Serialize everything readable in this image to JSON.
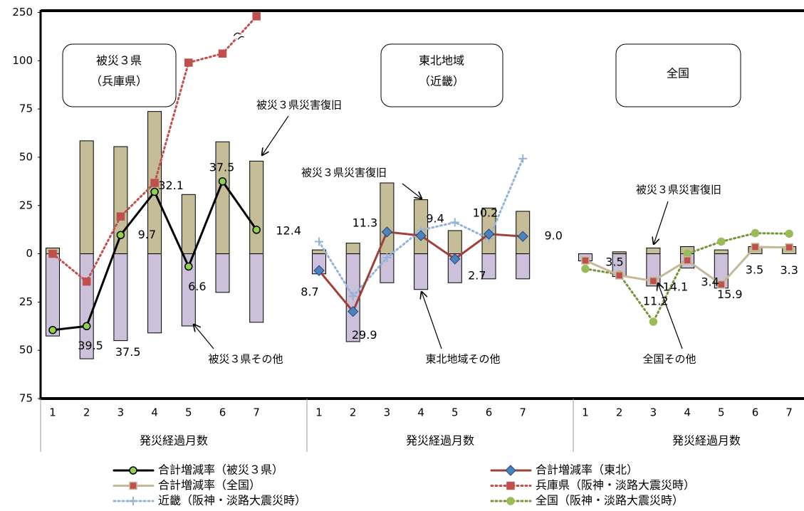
{
  "chart_data": {
    "type": "combo",
    "ylim": [
      -75,
      250
    ],
    "axis_break": [
      112.5,
      237.5
    ],
    "yticks": [
      250,
      100,
      75,
      50,
      25,
      0,
      {
        "value": -25,
        "label": "25"
      },
      {
        "value": -50,
        "label": "50"
      },
      {
        "value": -75,
        "label": "75"
      }
    ],
    "bar_colors": {
      "positive": "#c4bd97",
      "negative": "#ccc0da"
    },
    "panels": [
      {
        "title": [
          "被災３県",
          "（兵庫県）"
        ],
        "categories": [
          1,
          2,
          3,
          4,
          5,
          6,
          7
        ],
        "x_label": "発災経過月数",
        "bars": {
          "positive": [
            3,
            58.5,
            55.5,
            73.7,
            30.7,
            58,
            48
          ],
          "negative": [
            -42.6,
            -54.4,
            -45,
            -41,
            -37.4,
            -20,
            -35.5
          ]
        },
        "annotations": [
          {
            "text": "被災３県災害復旧"
          },
          {
            "text": "被災３県その他"
          }
        ],
        "series": [
          {
            "name": "合計増減率（被災３県）",
            "color": "#000000",
            "marker": "circle",
            "marker_color": "#92d050",
            "dash": false,
            "values": [
              -39.5,
              -37.5,
              9.7,
              32.1,
              -6.6,
              37.5,
              12.4
            ],
            "value_labels": [
              "39.5",
              "37.5",
              "9.7",
              "32.1",
              "6.6",
              "37.5",
              "12.4"
            ]
          },
          {
            "name": "兵庫県（阪神・淡路大震災時）",
            "color": "#c0504d",
            "marker": "square",
            "marker_color": "#c0504d",
            "dash": true,
            "values": [
              0,
              -14.4,
              19.3,
              36.7,
              99,
              103.7,
              248
            ]
          }
        ]
      },
      {
        "title": [
          "東北地域",
          "（近畿）"
        ],
        "categories": [
          1,
          2,
          3,
          4,
          5,
          6,
          7
        ],
        "x_label": "発災経過月数",
        "bars": {
          "positive": [
            2,
            5.5,
            36.7,
            28,
            12,
            23.7,
            22
          ],
          "negative": [
            -10.4,
            -45.5,
            -15,
            -18.5,
            -15,
            -13,
            -13
          ]
        },
        "annotations": [
          {
            "text": "被災３県災害復旧"
          },
          {
            "text": "東北地域その他"
          }
        ],
        "series": [
          {
            "name": "合計増減率（東北）",
            "color": "#a0403a",
            "marker": "diamond",
            "marker_color": "#4f81bd",
            "dash": false,
            "values": [
              -8.7,
              -29.9,
              11.3,
              9.4,
              -2.7,
              10.2,
              9
            ],
            "value_labels": [
              "8.7",
              "29.9",
              "11.3",
              "9.4",
              "2.7",
              "10.2",
              "9.0"
            ]
          },
          {
            "name": "近畿（阪神・淡路大震災時）",
            "color": "#95b3d7",
            "marker": "plus",
            "marker_color": "#95b3d7",
            "dash": true,
            "values": [
              6.3,
              -22,
              -2,
              12.2,
              16.3,
              7.8,
              49.3
            ]
          }
        ]
      },
      {
        "title": [
          "全国"
        ],
        "categories": [
          1,
          2,
          3,
          4,
          5,
          6,
          7
        ],
        "x_label": "発災経過月数",
        "bars": {
          "positive": [
            0,
            1,
            3,
            3.7,
            2,
            3.7,
            3.7
          ],
          "negative": [
            -3.7,
            -11.8,
            -16.7,
            -7.4,
            -17.8,
            0,
            0
          ]
        },
        "annotations": [
          {
            "text": "被災３県災害復旧"
          },
          {
            "text": "全国その他"
          }
        ],
        "series": [
          {
            "name": "合計増減率（全国）",
            "color": "#c4b896",
            "marker": "square",
            "marker_color": "#c0504d",
            "dash": false,
            "values": [
              -3.5,
              -11.2,
              -14.1,
              -3.4,
              -15.9,
              3.5,
              3.3
            ],
            "value_labels": [
              "3.5",
              "11.2",
              "14.1",
              "3.4",
              "15.9",
              "3.5",
              "3.3"
            ]
          },
          {
            "name": "全国（阪神・淡路大震災時）",
            "color": "#77933c",
            "marker": "circle",
            "marker_color": "#9bbb59",
            "dash": true,
            "values": [
              -7.8,
              -10.7,
              -35.2,
              0,
              6.3,
              10.7,
              10.4
            ]
          }
        ]
      }
    ]
  }
}
